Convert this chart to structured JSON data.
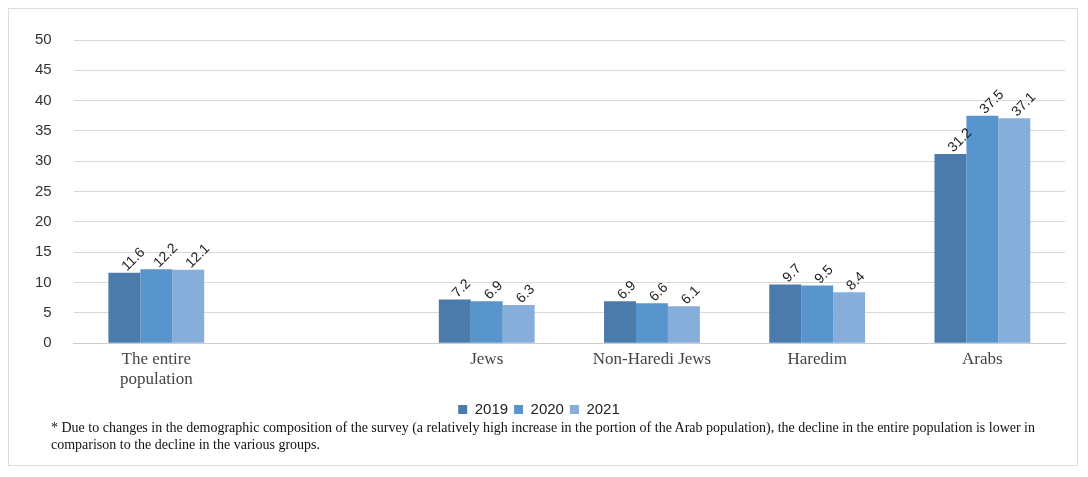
{
  "chart_data": {
    "type": "bar",
    "categories": [
      "The entire population",
      null,
      "Jews",
      "Non-Haredi Jews",
      "Haredim",
      "Arabs"
    ],
    "series": [
      {
        "name": "2019",
        "color": "#4a7bab",
        "values": [
          11.6,
          null,
          7.2,
          6.9,
          9.7,
          31.2
        ]
      },
      {
        "name": "2020",
        "color": "#5895cc",
        "values": [
          12.2,
          null,
          6.9,
          6.6,
          9.5,
          37.5
        ]
      },
      {
        "name": "2021",
        "color": "#87aedb",
        "values": [
          12.1,
          null,
          6.3,
          6.1,
          8.4,
          37.1
        ]
      }
    ],
    "ylim": [
      0,
      50
    ],
    "yticks": [
      0,
      5,
      10,
      15,
      20,
      25,
      30,
      35,
      40,
      45,
      50
    ],
    "grid": "y",
    "legend": "bottom",
    "data_labels": true,
    "annotations": [
      "* Due to changes in the demographic composition of the survey (a relatively high increase in the portion of the Arab population), the decline in the entire population is lower in comparison to the decline in the various groups."
    ]
  }
}
